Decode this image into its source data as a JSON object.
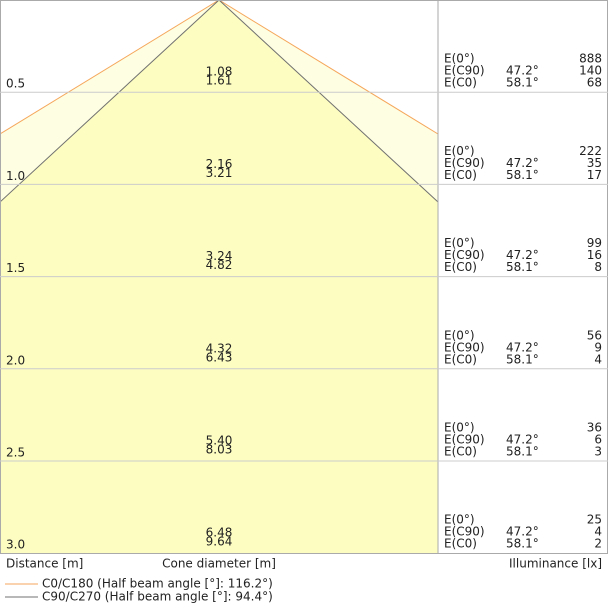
{
  "rows": [
    {
      "distance": "0.5",
      "diameter_c90": "1.08",
      "diameter_c0": "1.61",
      "e0": "888",
      "ec90": "140",
      "ec0": "68"
    },
    {
      "distance": "1.0",
      "diameter_c90": "2.16",
      "diameter_c0": "3.21",
      "e0": "222",
      "ec90": "35",
      "ec0": "17"
    },
    {
      "distance": "1.5",
      "diameter_c90": "3.24",
      "diameter_c0": "4.82",
      "e0": "99",
      "ec90": "16",
      "ec0": "8"
    },
    {
      "distance": "2.0",
      "diameter_c90": "4.32",
      "diameter_c0": "6.43",
      "e0": "56",
      "ec90": "9",
      "ec0": "4"
    },
    {
      "distance": "2.5",
      "diameter_c90": "5.40",
      "diameter_c0": "8.03",
      "e0": "36",
      "ec90": "6",
      "ec0": "3"
    },
    {
      "distance": "3.0",
      "diameter_c90": "6.48",
      "diameter_c0": "9.64",
      "e0": "25",
      "ec90": "4",
      "ec0": "2"
    }
  ],
  "labels": {
    "e0": "E(0°)",
    "ec90": "E(C90)",
    "ec0": "E(C0)",
    "angle_c90": "47.2°",
    "angle_c0": "58.1°"
  },
  "footer": {
    "distance": "Distance [m]",
    "diameter": "Cone diameter [m]",
    "illuminance": "Illuminance [lx]"
  },
  "legend": [
    {
      "label": "C0/C180 (Half beam angle [°]: 116.2°)",
      "color": "#f5a65b"
    },
    {
      "label": "C90/C270 (Half beam angle [°]: 94.4°)",
      "color": "#707070"
    }
  ]
}
